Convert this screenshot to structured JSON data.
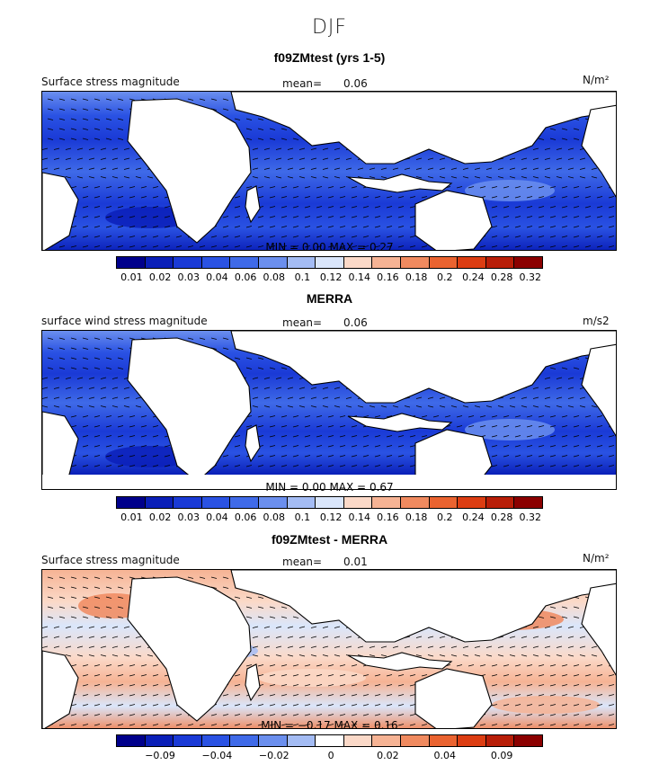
{
  "season": "DJF",
  "panels": [
    {
      "title": "f09ZMtest (yrs 1-5)",
      "left_label": "Surface stress magnitude",
      "mean_label": "mean=",
      "mean_value": "0.06",
      "units": "N/m²",
      "min_label": "MIN =",
      "min_value": "0.00",
      "max_label": "MAX =",
      "max_value": "0.27",
      "ticks": [
        "0.01",
        "0.02",
        "0.03",
        "0.04",
        "0.06",
        "0.08",
        "0.1",
        "0.12",
        "0.14",
        "0.16",
        "0.18",
        "0.2",
        "0.24",
        "0.28",
        "0.32"
      ]
    },
    {
      "title": "MERRA",
      "left_label": "surface wind stress magnitude",
      "mean_label": "mean=",
      "mean_value": "0.06",
      "units": "m/s2",
      "min_label": "MIN =",
      "min_value": "0.00",
      "max_label": "MAX =",
      "max_value": "0.67",
      "ticks": [
        "0.01",
        "0.02",
        "0.03",
        "0.04",
        "0.06",
        "0.08",
        "0.1",
        "0.12",
        "0.14",
        "0.16",
        "0.18",
        "0.2",
        "0.24",
        "0.28",
        "0.32"
      ]
    },
    {
      "title": "f09ZMtest - MERRA",
      "left_label": "Surface stress magnitude",
      "mean_label": "mean=",
      "mean_value": "0.01",
      "units": "N/m²",
      "min_label": "MIN =",
      "min_value": "−0.17",
      "max_label": "MAX =",
      "max_value": "0.16",
      "ticks": [
        "",
        "−0.09",
        "",
        "−0.04",
        "",
        "−0.02",
        "",
        "0",
        "",
        "0.02",
        "",
        "0.04",
        "",
        "0.09",
        ""
      ]
    }
  ],
  "colors": {
    "sequential": [
      "#00008b",
      "#0a1fb8",
      "#1a3ad6",
      "#2a52e3",
      "#3f6ae8",
      "#6b8fee",
      "#a4bcf4",
      "#dae6fb",
      "#fbd9c8",
      "#f6b394",
      "#f08a5f",
      "#ea6330",
      "#dc3d12",
      "#b81e08",
      "#8b0000"
    ],
    "diverging": [
      "#00008b",
      "#0a1fb8",
      "#1a3ad6",
      "#2a52e3",
      "#3f6ae8",
      "#6b8fee",
      "#a4bcf4",
      "#ffffff",
      "#fbd9c8",
      "#f6b394",
      "#f08a5f",
      "#ea6330",
      "#dc3d12",
      "#b81e08",
      "#8b0000"
    ],
    "land": "#ffffff"
  },
  "chart_data": [
    {
      "type": "heatmap",
      "title": "f09ZMtest (yrs 1-5)",
      "subtitle": "DJF",
      "variable": "Surface stress magnitude",
      "units": "N/m²",
      "mean": 0.06,
      "min": 0.0,
      "max": 0.27,
      "contour_levels": [
        0.01,
        0.02,
        0.03,
        0.04,
        0.06,
        0.08,
        0.1,
        0.12,
        0.14,
        0.16,
        0.18,
        0.2,
        0.24,
        0.28,
        0.32
      ],
      "colormap": "blue-white-red sequential"
    },
    {
      "type": "heatmap",
      "title": "MERRA",
      "subtitle": "DJF",
      "variable": "surface wind stress magnitude",
      "units": "m/s2",
      "mean": 0.06,
      "min": 0.0,
      "max": 0.67,
      "contour_levels": [
        0.01,
        0.02,
        0.03,
        0.04,
        0.06,
        0.08,
        0.1,
        0.12,
        0.14,
        0.16,
        0.18,
        0.2,
        0.24,
        0.28,
        0.32
      ],
      "colormap": "blue-white-red sequential"
    },
    {
      "type": "heatmap",
      "title": "f09ZMtest - MERRA",
      "subtitle": "DJF",
      "variable": "Surface stress magnitude",
      "units": "N/m²",
      "mean": 0.01,
      "min": -0.17,
      "max": 0.16,
      "contour_levels": [
        -0.09,
        -0.04,
        -0.02,
        0,
        0.02,
        0.04,
        0.09
      ],
      "colormap": "blue-white-red diverging"
    }
  ]
}
